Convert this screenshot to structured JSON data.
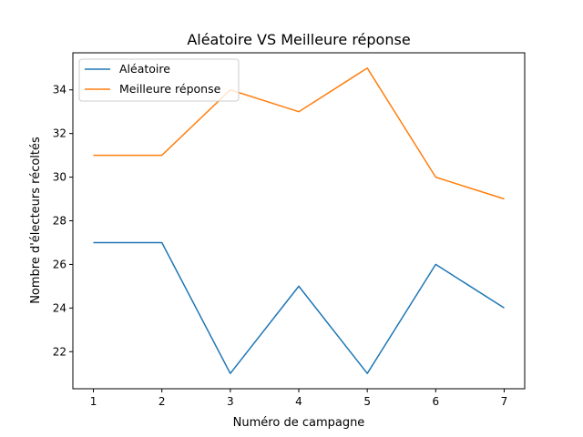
{
  "chart_data": {
    "type": "line",
    "title": "Aléatoire VS Meilleure réponse",
    "xlabel": "Numéro de campagne",
    "ylabel": "Nombre d'électeurs récoltés",
    "x": [
      1,
      2,
      3,
      4,
      5,
      6,
      7
    ],
    "xticks": [
      "1",
      "2",
      "3",
      "4",
      "5",
      "6",
      "7"
    ],
    "yticks": [
      "22",
      "24",
      "26",
      "28",
      "30",
      "32",
      "34"
    ],
    "xlim": [
      0.7,
      7.3
    ],
    "ylim": [
      20.3,
      35.7
    ],
    "grid": false,
    "legend_position": "top-left",
    "series": [
      {
        "name": "Aléatoire",
        "color": "#1f77b4",
        "values": [
          27,
          27,
          21,
          25,
          21,
          26,
          24
        ]
      },
      {
        "name": "Meilleure réponse",
        "color": "#ff7f0e",
        "values": [
          31,
          31,
          34,
          33,
          35,
          30,
          29
        ]
      }
    ]
  }
}
